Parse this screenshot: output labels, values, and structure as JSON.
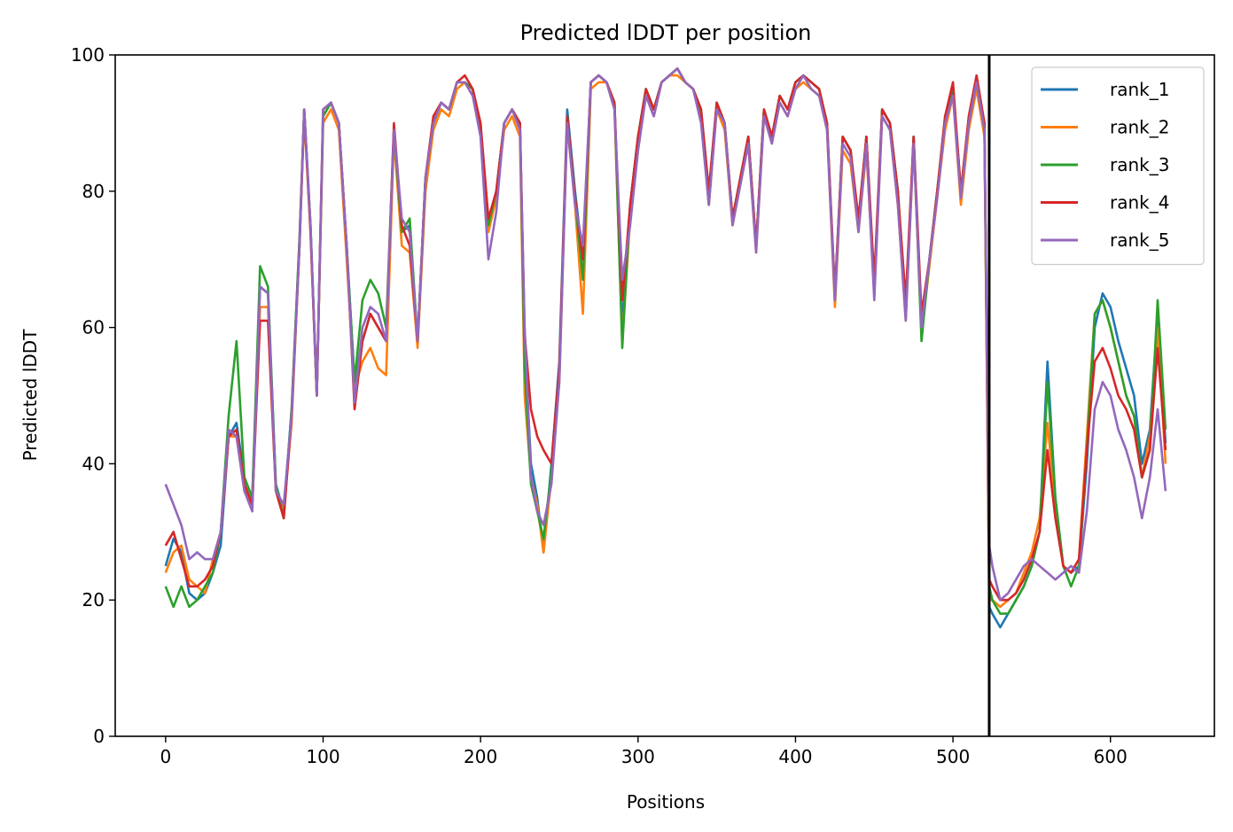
{
  "chart_data": {
    "type": "line",
    "title": "Predicted lDDT per position",
    "xlabel": "Positions",
    "ylabel": "Predicted lDDT",
    "xlim": [
      -32,
      666
    ],
    "ylim": [
      0,
      100
    ],
    "xticks": [
      0,
      100,
      200,
      300,
      400,
      500,
      600
    ],
    "yticks": [
      0,
      20,
      40,
      60,
      80,
      100
    ],
    "grid": false,
    "legend_position": "top-right",
    "separator_x": 523,
    "x": [
      0,
      5,
      10,
      15,
      20,
      25,
      30,
      35,
      40,
      45,
      50,
      55,
      60,
      65,
      70,
      75,
      80,
      85,
      88,
      92,
      96,
      100,
      105,
      110,
      115,
      120,
      125,
      130,
      135,
      140,
      145,
      150,
      155,
      160,
      165,
      170,
      175,
      180,
      185,
      190,
      195,
      200,
      205,
      210,
      215,
      220,
      225,
      228,
      232,
      236,
      240,
      245,
      250,
      255,
      260,
      265,
      270,
      275,
      280,
      285,
      290,
      295,
      300,
      305,
      310,
      315,
      320,
      325,
      330,
      335,
      340,
      345,
      350,
      355,
      360,
      365,
      370,
      375,
      380,
      385,
      390,
      395,
      400,
      405,
      410,
      415,
      420,
      425,
      430,
      435,
      440,
      445,
      450,
      455,
      460,
      465,
      470,
      475,
      480,
      485,
      490,
      495,
      500,
      505,
      510,
      515,
      520,
      523,
      525,
      530,
      535,
      540,
      545,
      550,
      555,
      560,
      565,
      570,
      575,
      580,
      585,
      590,
      595,
      600,
      605,
      610,
      615,
      620,
      625,
      630,
      635
    ],
    "series": [
      {
        "name": "rank_1",
        "color": "#1f77b4",
        "values": [
          25,
          29,
          27,
          21,
          20,
          21,
          24,
          28,
          44,
          46,
          38,
          35,
          66,
          65,
          37,
          33,
          48,
          73,
          92,
          75,
          50,
          91,
          93,
          90,
          72,
          52,
          58,
          62,
          60,
          58,
          89,
          74,
          75,
          58,
          82,
          90,
          93,
          92,
          96,
          96,
          95,
          90,
          75,
          80,
          90,
          92,
          90,
          58,
          40,
          35,
          27,
          40,
          55,
          92,
          80,
          70,
          96,
          97,
          96,
          93,
          60,
          78,
          88,
          95,
          92,
          96,
          97,
          98,
          96,
          95,
          92,
          80,
          93,
          90,
          76,
          82,
          88,
          72,
          92,
          88,
          94,
          92,
          96,
          97,
          96,
          95,
          90,
          65,
          88,
          86,
          75,
          88,
          66,
          92,
          90,
          80,
          62,
          88,
          60,
          70,
          80,
          90,
          95,
          80,
          90,
          96,
          90,
          19,
          18,
          16,
          18,
          20,
          22,
          25,
          30,
          55,
          35,
          25,
          24,
          25,
          40,
          60,
          65,
          63,
          58,
          54,
          50,
          40,
          45,
          62,
          43
        ]
      },
      {
        "name": "rank_2",
        "color": "#ff7f0e",
        "values": [
          24,
          27,
          28,
          23,
          22,
          21,
          26,
          30,
          44,
          44,
          36,
          34,
          63,
          63,
          36,
          33,
          46,
          72,
          91,
          74,
          50,
          90,
          92,
          89,
          70,
          51,
          55,
          57,
          54,
          53,
          88,
          72,
          71,
          57,
          80,
          89,
          92,
          91,
          95,
          96,
          94,
          89,
          74,
          79,
          89,
          91,
          88,
          50,
          38,
          34,
          27,
          38,
          52,
          90,
          78,
          62,
          95,
          96,
          96,
          92,
          58,
          76,
          86,
          94,
          91,
          96,
          97,
          97,
          96,
          95,
          91,
          78,
          92,
          89,
          75,
          81,
          87,
          71,
          91,
          87,
          93,
          91,
          95,
          96,
          95,
          94,
          89,
          63,
          86,
          84,
          74,
          86,
          65,
          91,
          89,
          78,
          61,
          87,
          59,
          69,
          79,
          89,
          94,
          78,
          89,
          95,
          88,
          20,
          20,
          19,
          20,
          21,
          24,
          27,
          32,
          46,
          34,
          25,
          24,
          26,
          44,
          62,
          64,
          60,
          55,
          50,
          47,
          38,
          44,
          60,
          40
        ]
      },
      {
        "name": "rank_3",
        "color": "#2ca02c",
        "values": [
          22,
          19,
          22,
          19,
          20,
          22,
          24,
          30,
          47,
          58,
          38,
          35,
          69,
          66,
          37,
          32,
          48,
          73,
          92,
          75,
          50,
          91,
          93,
          90,
          72,
          52,
          64,
          67,
          65,
          60,
          89,
          74,
          76,
          58,
          82,
          90,
          93,
          92,
          96,
          96,
          95,
          89,
          75,
          80,
          90,
          92,
          90,
          54,
          37,
          33,
          29,
          39,
          53,
          91,
          79,
          67,
          96,
          97,
          96,
          93,
          57,
          78,
          88,
          95,
          92,
          96,
          97,
          98,
          96,
          95,
          91,
          78,
          93,
          90,
          76,
          82,
          88,
          72,
          92,
          88,
          94,
          92,
          96,
          97,
          96,
          95,
          90,
          64,
          88,
          86,
          75,
          88,
          65,
          92,
          90,
          80,
          62,
          88,
          58,
          70,
          80,
          91,
          95,
          80,
          90,
          96,
          89,
          22,
          20,
          18,
          18,
          20,
          22,
          25,
          30,
          52,
          35,
          25,
          22,
          25,
          42,
          62,
          64,
          60,
          55,
          50,
          47,
          38,
          42,
          64,
          45
        ]
      },
      {
        "name": "rank_4",
        "color": "#d62728",
        "values": [
          28,
          30,
          26,
          22,
          22,
          23,
          25,
          30,
          44,
          45,
          37,
          34,
          61,
          61,
          36,
          32,
          47,
          72,
          92,
          74,
          50,
          92,
          93,
          90,
          72,
          48,
          58,
          62,
          60,
          58,
          90,
          75,
          72,
          58,
          82,
          91,
          93,
          92,
          96,
          97,
          95,
          90,
          76,
          80,
          90,
          92,
          90,
          59,
          48,
          44,
          42,
          40,
          54,
          91,
          79,
          70,
          96,
          97,
          96,
          93,
          64,
          78,
          88,
          95,
          92,
          96,
          97,
          98,
          96,
          95,
          92,
          80,
          93,
          90,
          76,
          82,
          88,
          72,
          92,
          88,
          94,
          92,
          96,
          97,
          96,
          95,
          90,
          65,
          88,
          86,
          76,
          88,
          67,
          92,
          90,
          80,
          64,
          88,
          62,
          70,
          80,
          91,
          96,
          80,
          91,
          97,
          90,
          23,
          22,
          20,
          20,
          21,
          23,
          26,
          30,
          42,
          32,
          25,
          24,
          26,
          42,
          55,
          57,
          54,
          50,
          48,
          45,
          38,
          42,
          57,
          42
        ]
      },
      {
        "name": "rank_5",
        "color": "#9467bd",
        "values": [
          37,
          34,
          31,
          26,
          27,
          26,
          26,
          30,
          45,
          44,
          36,
          33,
          66,
          65,
          36,
          34,
          47,
          72,
          92,
          75,
          50,
          92,
          93,
          90,
          72,
          49,
          60,
          63,
          62,
          58,
          89,
          76,
          74,
          58,
          82,
          90,
          93,
          92,
          96,
          96,
          94,
          88,
          70,
          77,
          90,
          92,
          89,
          60,
          38,
          33,
          31,
          37,
          52,
          90,
          78,
          72,
          96,
          97,
          96,
          92,
          67,
          75,
          86,
          94,
          91,
          96,
          97,
          98,
          96,
          95,
          90,
          78,
          92,
          90,
          75,
          81,
          87,
          71,
          91,
          87,
          93,
          91,
          95,
          97,
          95,
          94,
          89,
          64,
          87,
          85,
          74,
          87,
          64,
          91,
          89,
          78,
          61,
          87,
          60,
          70,
          79,
          90,
          94,
          79,
          90,
          96,
          89,
          28,
          25,
          20,
          21,
          23,
          25,
          26,
          25,
          24,
          23,
          24,
          25,
          24,
          33,
          48,
          52,
          50,
          45,
          42,
          38,
          32,
          38,
          48,
          36
        ]
      }
    ]
  }
}
